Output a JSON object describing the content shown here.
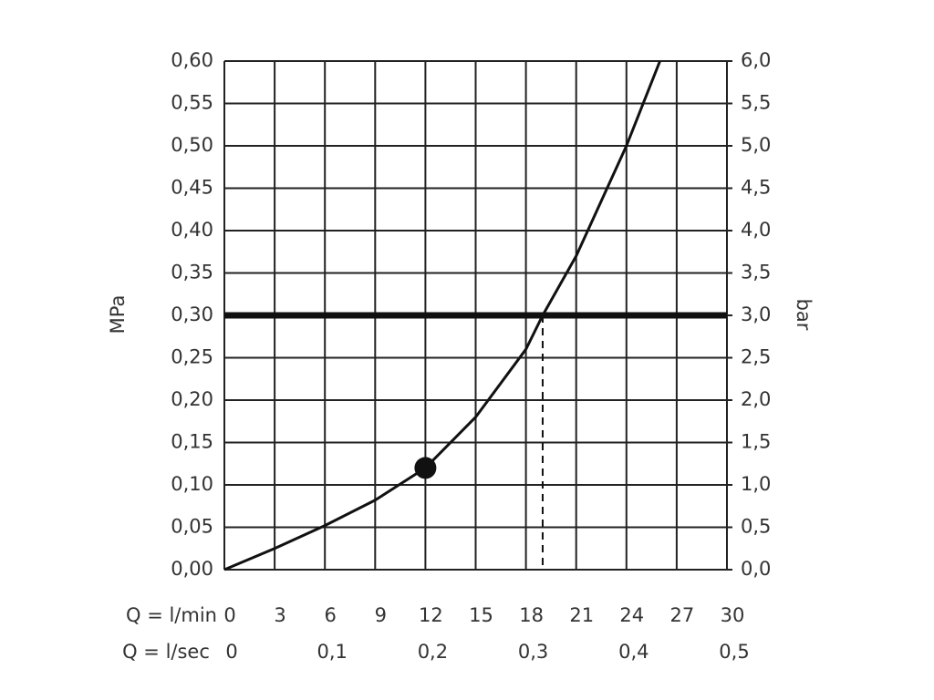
{
  "chart_data": {
    "type": "line",
    "x_label": "Q = l/min",
    "x2_label": "Q = l/sec",
    "y_label": "MPa",
    "y2_label": "bar",
    "x": [
      0,
      3,
      6,
      9,
      12,
      15,
      18,
      19,
      21,
      24,
      26
    ],
    "series": [
      {
        "color": "#111111",
        "values": [
          0,
          0.025,
          0.052,
          0.082,
          0.12,
          0.18,
          0.26,
          0.3,
          0.37,
          0.5,
          0.6
        ]
      }
    ],
    "marker": {
      "x": 12,
      "y": 0.12
    },
    "reference_y": 0.3,
    "reference_x": 19,
    "xlim": [
      0,
      30
    ],
    "xticks": [
      0,
      3,
      6,
      9,
      12,
      15,
      18,
      21,
      24,
      27,
      30
    ],
    "x2lim": [
      0,
      0.5
    ],
    "x2ticks": [
      0,
      {
        "value": 0.1,
        "label": "0,1"
      },
      {
        "value": 0.2,
        "label": "0,2"
      },
      {
        "value": 0.3,
        "label": "0,3"
      },
      {
        "value": 0.4,
        "label": "0,4"
      },
      {
        "value": 0.5,
        "label": "0,5"
      }
    ],
    "ylim": [
      0,
      0.6
    ],
    "yticks": [
      {
        "value": 0,
        "label": "0,00"
      },
      {
        "value": 0.05,
        "label": "0,05"
      },
      {
        "value": 0.1,
        "label": "0,10"
      },
      {
        "value": 0.15,
        "label": "0,15"
      },
      {
        "value": 0.2,
        "label": "0,20"
      },
      {
        "value": 0.25,
        "label": "0,25"
      },
      {
        "value": 0.3,
        "label": "0,30"
      },
      {
        "value": 0.35,
        "label": "0,35"
      },
      {
        "value": 0.4,
        "label": "0,40"
      },
      {
        "value": 0.45,
        "label": "0,45"
      },
      {
        "value": 0.5,
        "label": "0,50"
      },
      {
        "value": 0.55,
        "label": "0,55"
      },
      {
        "value": 0.6,
        "label": "0,60"
      }
    ],
    "y2lim": [
      0,
      6
    ],
    "y2ticks": [
      {
        "value": 0,
        "label": "0,0"
      },
      {
        "value": 0.5,
        "label": "0,5"
      },
      {
        "value": 1,
        "label": "1,0"
      },
      {
        "value": 1.5,
        "label": "1,5"
      },
      {
        "value": 2,
        "label": "2,0"
      },
      {
        "value": 2.5,
        "label": "2,5"
      },
      {
        "value": 3,
        "label": "3,0"
      },
      {
        "value": 3.5,
        "label": "3,5"
      },
      {
        "value": 4,
        "label": "4,0"
      },
      {
        "value": 4.5,
        "label": "4,5"
      },
      {
        "value": 5,
        "label": "5,0"
      },
      {
        "value": 5.5,
        "label": "5,5"
      },
      {
        "value": 6,
        "label": "6,0"
      }
    ],
    "grid": true
  }
}
